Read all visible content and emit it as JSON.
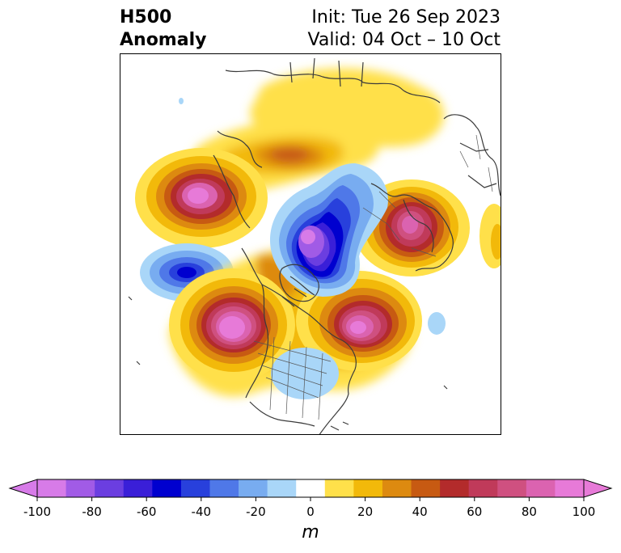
{
  "title": {
    "left_line1": "H500",
    "left_line2": "Anomaly",
    "right_line1": "Init: Tue 26 Sep 2023",
    "right_line2": "Valid: 04 Oct – 10 Oct"
  },
  "colorbar": {
    "unit": "m",
    "ticks": [
      "-100",
      "-80",
      "-60",
      "-40",
      "-20",
      "0",
      "20",
      "40",
      "60",
      "80",
      "100"
    ],
    "colors": [
      "#d77be8",
      "#a15be6",
      "#6b3ee0",
      "#3a1fd8",
      "#0000cf",
      "#2840dc",
      "#4f78e8",
      "#78acf0",
      "#a9d6f8",
      "#ffffff",
      "#ffe04a",
      "#f2b90a",
      "#dd8a10",
      "#c75a12",
      "#b32b2b",
      "#c03a5a",
      "#cf5080",
      "#db63b0",
      "#e77ad8"
    ],
    "min": -100,
    "max": 100,
    "step": 10
  }
}
